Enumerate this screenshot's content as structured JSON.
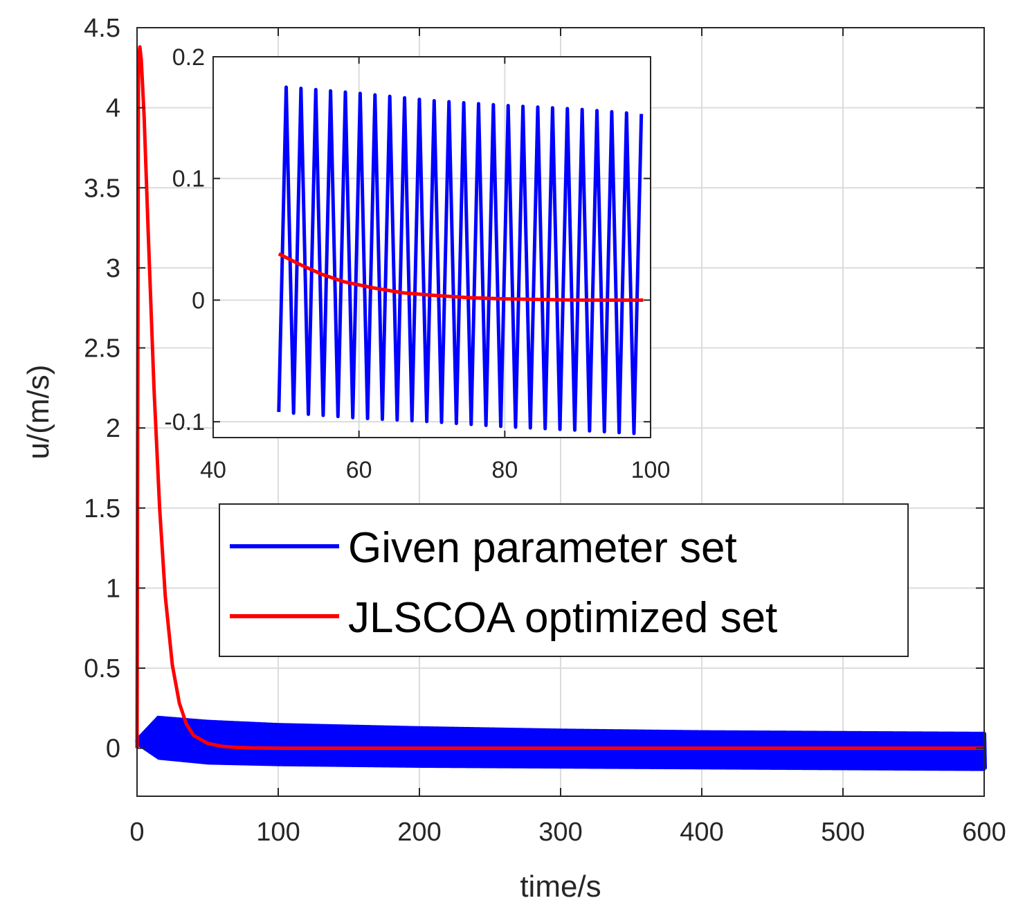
{
  "chart_data": [
    {
      "type": "line",
      "panel": "main",
      "title": "",
      "xlabel": "time/s",
      "ylabel": "u/(m/s)",
      "xlim": [
        0,
        600
      ],
      "ylim": [
        -0.3,
        4.5
      ],
      "xticks": [
        0,
        100,
        200,
        300,
        400,
        500,
        600
      ],
      "yticks": [
        0,
        0.5,
        1,
        1.5,
        2,
        2.5,
        3,
        3.5,
        4,
        4.5
      ],
      "xtick_labels": [
        "0",
        "100",
        "200",
        "300",
        "400",
        "500",
        "600"
      ],
      "ytick_labels": [
        "0",
        "0.5",
        "1",
        "1.5",
        "2",
        "2.5",
        "3",
        "3.5",
        "4",
        "4.5"
      ],
      "grid": true,
      "legend": {
        "placement": "center-right",
        "entries": [
          "Given parameter set",
          "JLSCOA optimized set"
        ]
      },
      "series": [
        {
          "name": "Given parameter set",
          "color": "#0000ff",
          "kind": "decaying-oscillation band",
          "band_upper": {
            "x": [
              0,
              15,
              50,
              100,
              200,
              300,
              400,
              500,
              600
            ],
            "y": [
              0.05,
              0.19,
              0.165,
              0.145,
              0.125,
              0.11,
              0.1,
              0.095,
              0.09
            ]
          },
          "band_lower": {
            "x": [
              0,
              15,
              50,
              100,
              200,
              300,
              400,
              500,
              600
            ],
            "y": [
              0.03,
              -0.06,
              -0.09,
              -0.1,
              -0.11,
              -0.115,
              -0.12,
              -0.125,
              -0.13
            ]
          }
        },
        {
          "name": "JLSCOA optimized set",
          "color": "#ff0000",
          "x": [
            0,
            1,
            2,
            3,
            5,
            8,
            12,
            16,
            20,
            25,
            30,
            35,
            40,
            50,
            60,
            70,
            80,
            100,
            200,
            300,
            400,
            500,
            600
          ],
          "y": [
            0,
            4.3,
            4.38,
            4.3,
            3.95,
            3.2,
            2.25,
            1.5,
            0.95,
            0.52,
            0.28,
            0.15,
            0.08,
            0.03,
            0.012,
            0.005,
            0.002,
            0,
            0,
            0,
            0,
            0,
            0
          ]
        }
      ]
    },
    {
      "type": "line",
      "panel": "inset",
      "title": "",
      "xlabel": "",
      "ylabel": "",
      "xlim": [
        40,
        100
      ],
      "ylim": [
        -0.113,
        0.2
      ],
      "xticks": [
        40,
        60,
        80,
        100
      ],
      "yticks": [
        -0.1,
        0,
        0.1,
        0.2
      ],
      "xtick_labels": [
        "40",
        "60",
        "80",
        "100"
      ],
      "ytick_labels": [
        "-0.1",
        "0",
        "0.1",
        "0.2"
      ],
      "grid": true,
      "series": [
        {
          "name": "Given parameter set",
          "color": "#0000ff",
          "x_start": 49,
          "x_end": 99.5,
          "period": 2.03,
          "peaks": {
            "x": [
              50.2,
              60,
              70,
              80,
              90,
              98.5
            ],
            "y": [
              0.175,
              0.17,
              0.164,
              0.16,
              0.157,
              0.153
            ]
          },
          "troughs": {
            "x": [
              49,
              60,
              70,
              80,
              90,
              99
            ],
            "y": [
              -0.092,
              -0.097,
              -0.1,
              -0.104,
              -0.107,
              -0.11
            ]
          }
        },
        {
          "name": "JLSCOA optimized set",
          "color": "#ff0000",
          "x": [
            49,
            52,
            55,
            58,
            62,
            66,
            70,
            75,
            80,
            85,
            90,
            95,
            99
          ],
          "y": [
            0.038,
            0.029,
            0.021,
            0.015,
            0.01,
            0.006,
            0.004,
            0.002,
            0.001,
            0.0005,
            0,
            0,
            0
          ]
        }
      ]
    }
  ]
}
